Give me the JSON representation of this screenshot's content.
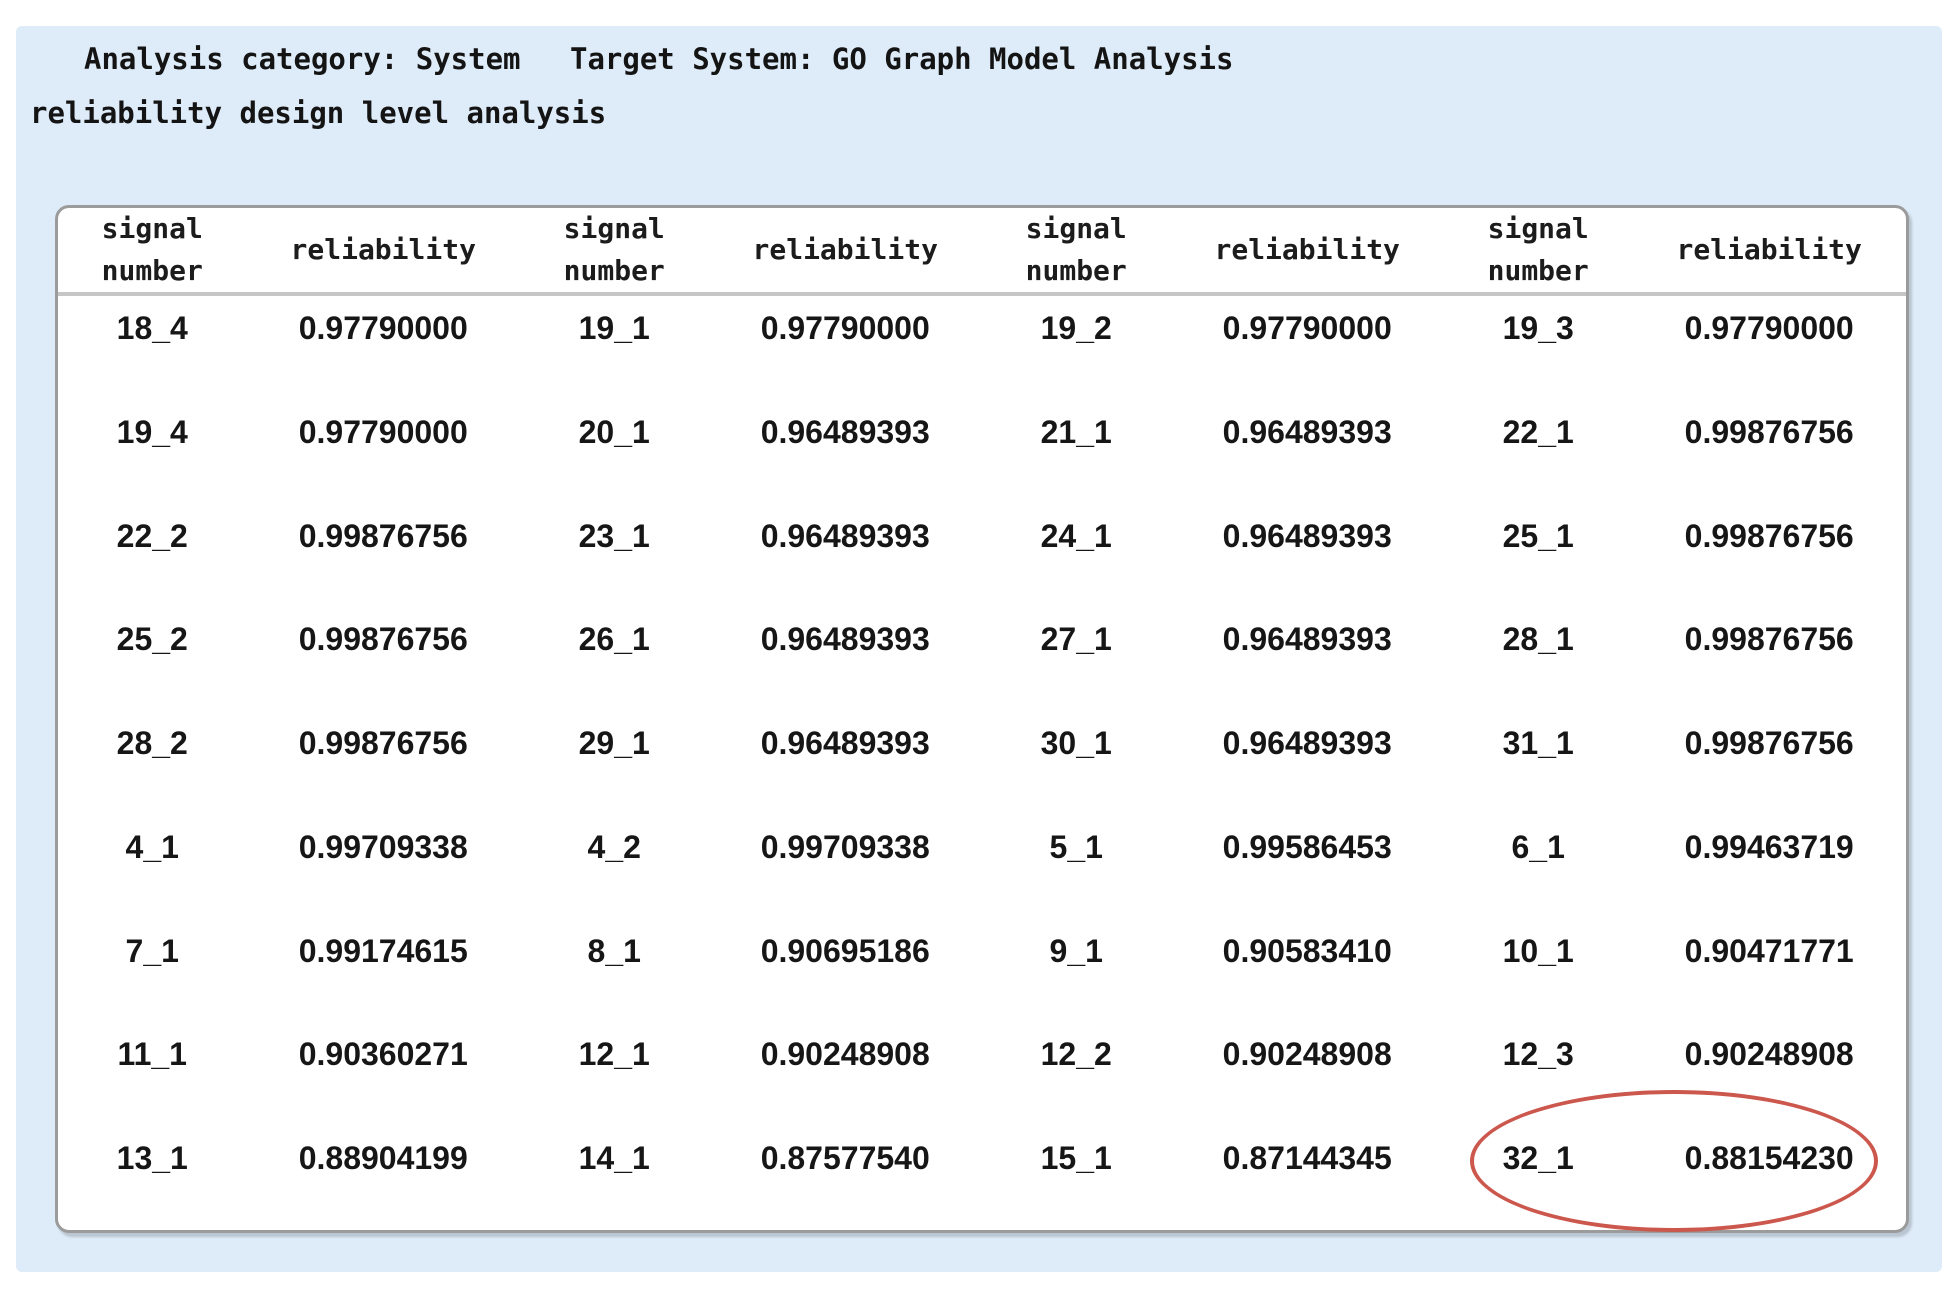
{
  "page": {
    "title_line1_left": "Analysis category: System",
    "title_line1_right": "Target System: GO Graph Model Analysis",
    "title_line2": "reliability design level analysis"
  },
  "colors": {
    "panel_background": "#deebf8",
    "table_background": "#ffffff",
    "table_border": "#9b9b9b",
    "header_separator": "#c6c6c6",
    "highlight_ellipse": "#cb574d",
    "text": "#141414"
  },
  "table": {
    "pairs_per_row": 4,
    "signal_header_line1": "signal",
    "signal_header_line2": "number",
    "reliability_header": "reliability",
    "rows": [
      [
        {
          "signal": "18_4",
          "reliability": "0.97790000"
        },
        {
          "signal": "19_1",
          "reliability": "0.97790000"
        },
        {
          "signal": "19_2",
          "reliability": "0.97790000"
        },
        {
          "signal": "19_3",
          "reliability": "0.97790000"
        }
      ],
      [
        {
          "signal": "19_4",
          "reliability": "0.97790000"
        },
        {
          "signal": "20_1",
          "reliability": "0.96489393"
        },
        {
          "signal": "21_1",
          "reliability": "0.96489393"
        },
        {
          "signal": "22_1",
          "reliability": "0.99876756"
        }
      ],
      [
        {
          "signal": "22_2",
          "reliability": "0.99876756"
        },
        {
          "signal": "23_1",
          "reliability": "0.96489393"
        },
        {
          "signal": "24_1",
          "reliability": "0.96489393"
        },
        {
          "signal": "25_1",
          "reliability": "0.99876756"
        }
      ],
      [
        {
          "signal": "25_2",
          "reliability": "0.99876756"
        },
        {
          "signal": "26_1",
          "reliability": "0.96489393"
        },
        {
          "signal": "27_1",
          "reliability": "0.96489393"
        },
        {
          "signal": "28_1",
          "reliability": "0.99876756"
        }
      ],
      [
        {
          "signal": "28_2",
          "reliability": "0.99876756"
        },
        {
          "signal": "29_1",
          "reliability": "0.96489393"
        },
        {
          "signal": "30_1",
          "reliability": "0.96489393"
        },
        {
          "signal": "31_1",
          "reliability": "0.99876756"
        }
      ],
      [
        {
          "signal": "4_1",
          "reliability": "0.99709338"
        },
        {
          "signal": "4_2",
          "reliability": "0.99709338"
        },
        {
          "signal": "5_1",
          "reliability": "0.99586453"
        },
        {
          "signal": "6_1",
          "reliability": "0.99463719"
        }
      ],
      [
        {
          "signal": "7_1",
          "reliability": "0.99174615"
        },
        {
          "signal": "8_1",
          "reliability": "0.90695186"
        },
        {
          "signal": "9_1",
          "reliability": "0.90583410"
        },
        {
          "signal": "10_1",
          "reliability": "0.90471771"
        }
      ],
      [
        {
          "signal": "11_1",
          "reliability": "0.90360271"
        },
        {
          "signal": "12_1",
          "reliability": "0.90248908"
        },
        {
          "signal": "12_2",
          "reliability": "0.90248908"
        },
        {
          "signal": "12_3",
          "reliability": "0.90248908"
        }
      ],
      [
        {
          "signal": "13_1",
          "reliability": "0.88904199"
        },
        {
          "signal": "14_1",
          "reliability": "0.87577540"
        },
        {
          "signal": "15_1",
          "reliability": "0.87144345"
        },
        {
          "signal": "32_1",
          "reliability": "0.88154230"
        }
      ]
    ],
    "highlight": {
      "row_index": 8,
      "pair_index": 3,
      "signal": "32_1",
      "reliability": "0.88154230"
    }
  }
}
